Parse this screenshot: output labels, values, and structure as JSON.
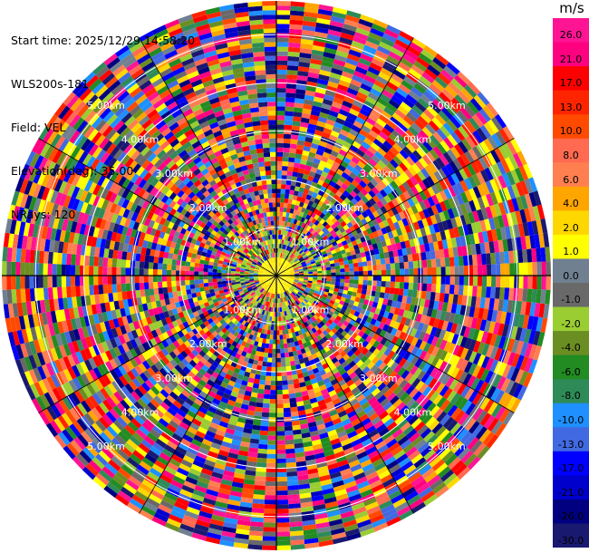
{
  "header": {
    "start_time": "Start time: 2025/12/29 14:58:20",
    "instrument": "WLS200s-181",
    "field": "Field: VEL",
    "elevation": "Elevation(deg): 35.00",
    "nrays": "NRays: 120"
  },
  "colorbar": {
    "unit": "m/s",
    "ticks": [
      "26.0",
      "21.0",
      "17.0",
      "13.0",
      "10.0",
      "8.0",
      "6.0",
      "4.0",
      "2.0",
      "1.0",
      "0.0",
      "-1.0",
      "-2.0",
      "-4.0",
      "-6.0",
      "-8.0",
      "-10.0",
      "-13.0",
      "-17.0",
      "-21.0",
      "-26.0",
      "-30.0"
    ],
    "colors": [
      "#ff1493",
      "#ff0080",
      "#ff0000",
      "#ff2400",
      "#ff4a00",
      "#ff6a50",
      "#ff7f50",
      "#ffa500",
      "#ffd700",
      "#ffff00",
      "#708090",
      "#696969",
      "#9acd32",
      "#6b8e23",
      "#228b22",
      "#2e8b57",
      "#1e90ff",
      "#4169e1",
      "#0000ff",
      "#0000cd",
      "#000080",
      "#191970"
    ]
  },
  "chart_data": {
    "type": "heatmap",
    "projection": "polar",
    "field": "VEL",
    "elevation_deg": 35.0,
    "nrays": 120,
    "range_rings_km": [
      1.0,
      2.0,
      3.0,
      4.0,
      5.0
    ],
    "ring_labels": [
      "1.00km",
      "2.00km",
      "3.00km",
      "4.00km",
      "5.00km"
    ],
    "value_range": [
      -30.0,
      26.0
    ],
    "units": "m/s"
  }
}
